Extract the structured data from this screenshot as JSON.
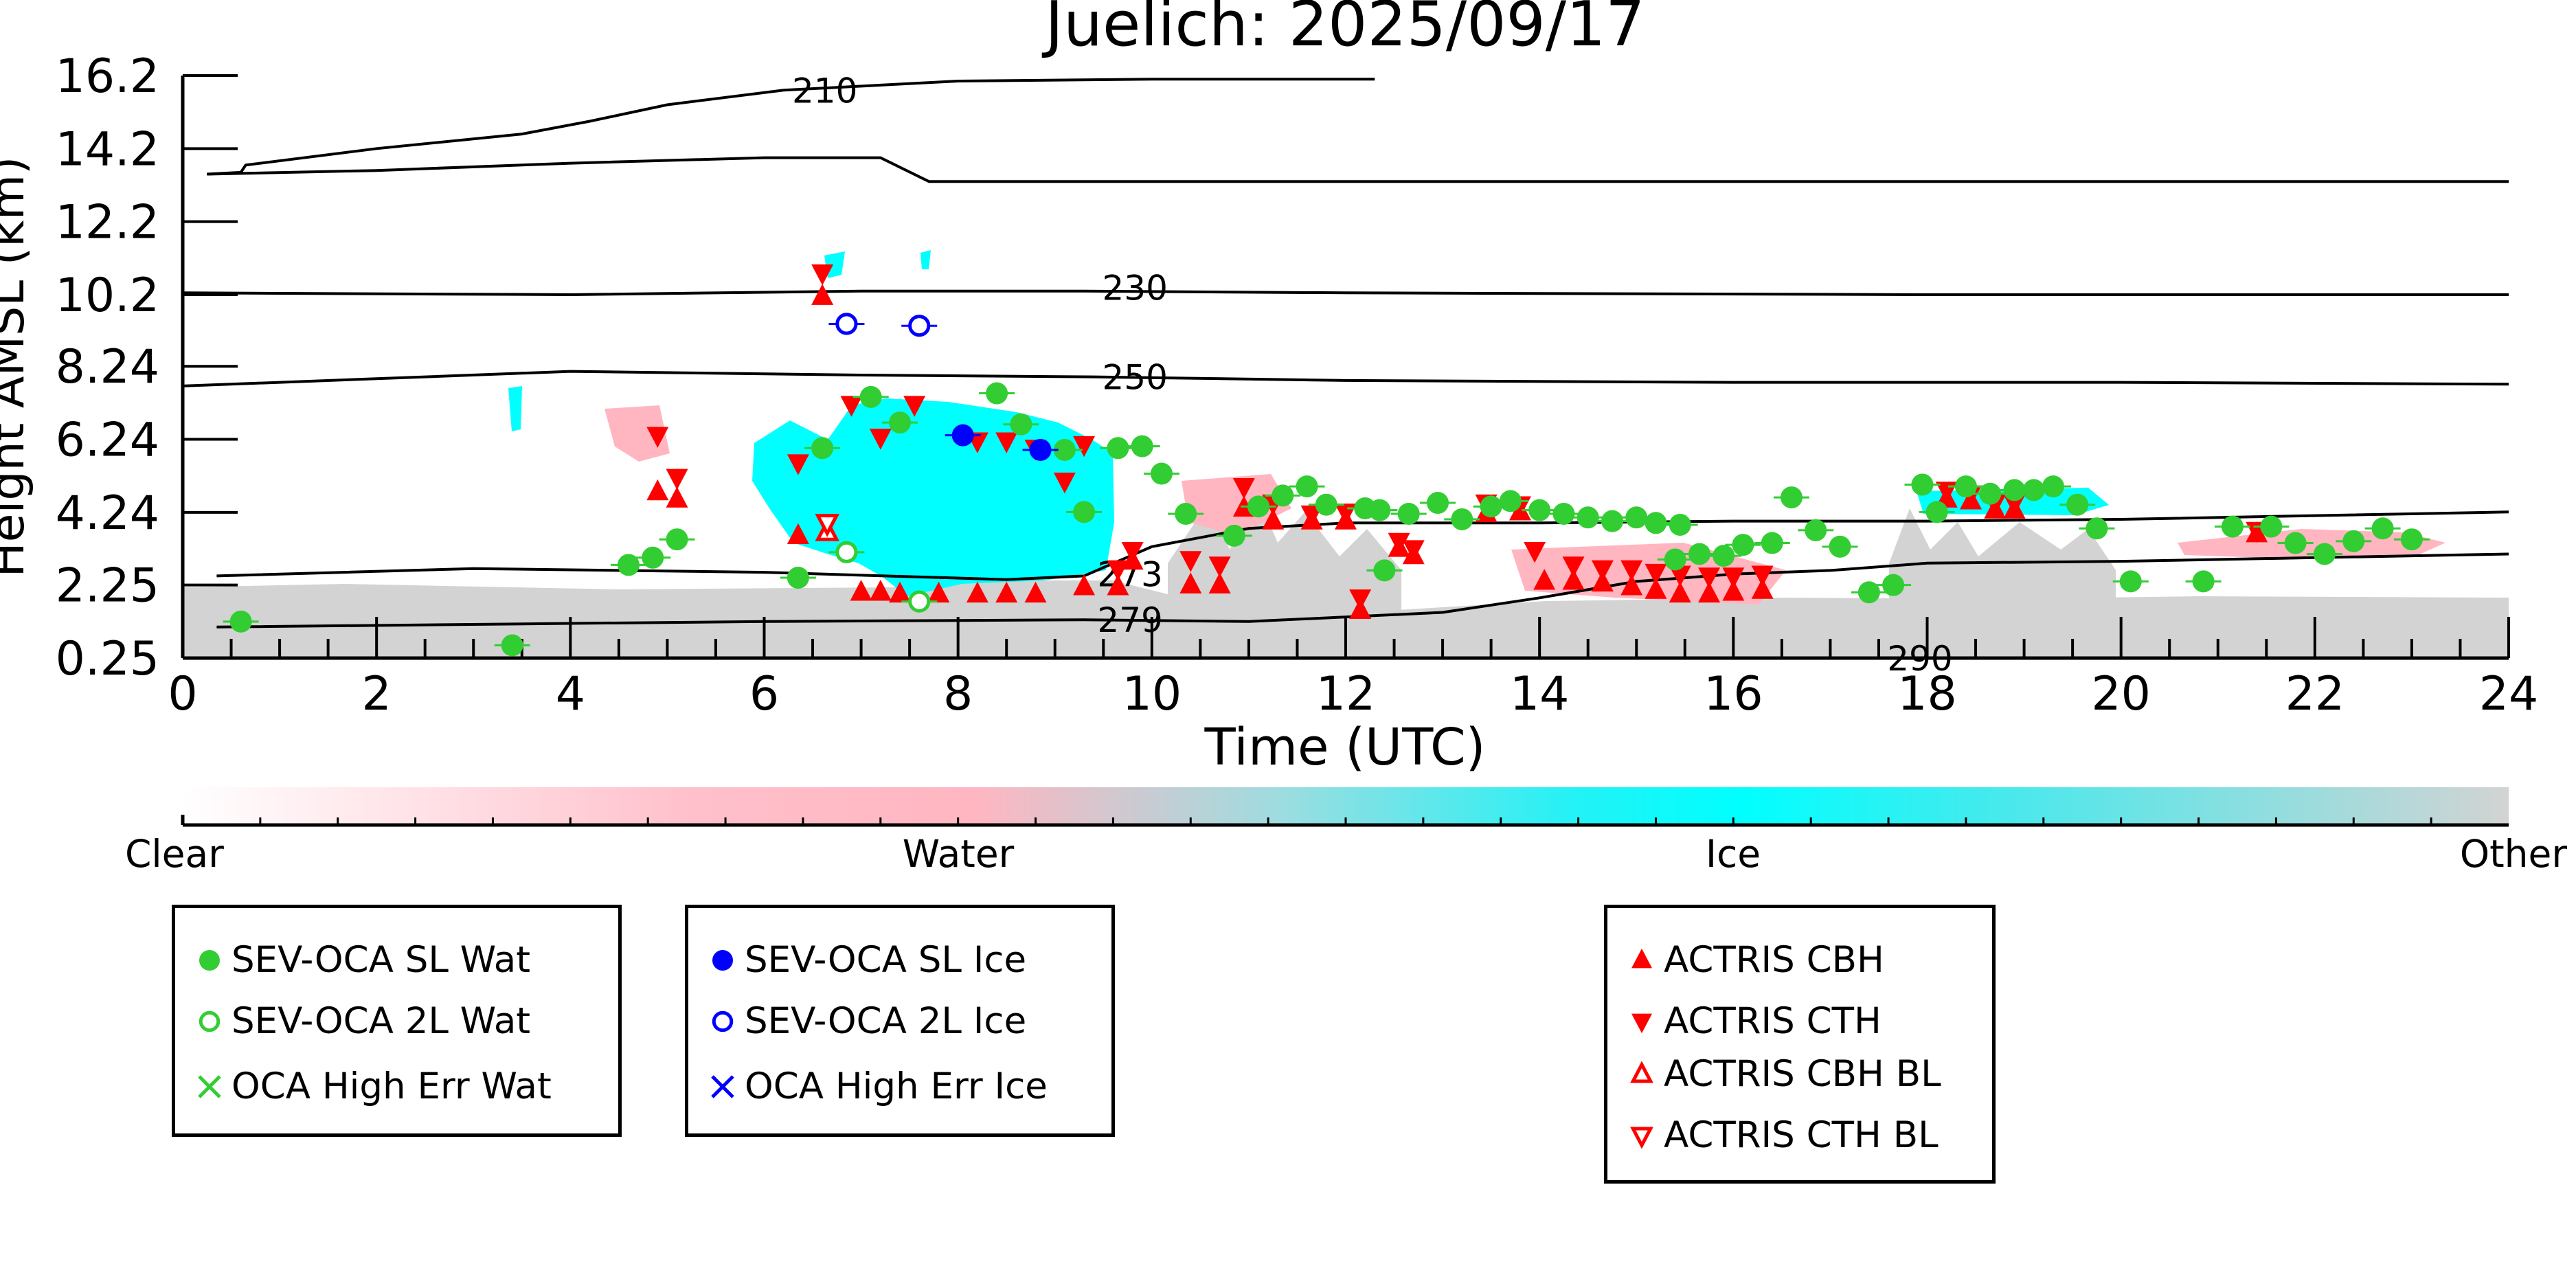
{
  "chart_data": {
    "type": "scatter",
    "title": "Juelich: 2025/09/17",
    "xlabel": "Time (UTC)",
    "ylabel": "Height AMSL (km)",
    "xlim": [
      0,
      24
    ],
    "ylim": [
      0.25,
      16.2
    ],
    "x_ticks": [
      "0",
      "2",
      "4",
      "6",
      "8",
      "10",
      "12",
      "14",
      "16",
      "18",
      "20",
      "22",
      "24"
    ],
    "y_ticks": [
      "0.25",
      "2.25",
      "4.24",
      "6.24",
      "8.24",
      "10.2",
      "12.2",
      "14.2",
      "16.2"
    ],
    "y_tick_values": [
      0.25,
      2.25,
      4.24,
      6.24,
      8.24,
      10.2,
      12.2,
      14.2,
      16.2
    ],
    "grid": false,
    "colorbar": {
      "labels": [
        "Clear",
        "Water",
        "Ice",
        "Other"
      ],
      "colors": [
        "#ffffff",
        "#ffb6c1",
        "#00ffff",
        "#d3d3d3"
      ]
    },
    "contours": [
      {
        "label": "210",
        "label_x": 6.2,
        "label_y": 15.8,
        "points": [
          [
            0.25,
            13.5
          ],
          [
            0.6,
            13.55
          ],
          [
            0.65,
            13.75
          ],
          [
            2,
            14.2
          ],
          [
            3.5,
            14.6
          ],
          [
            4.2,
            14.95
          ],
          [
            5,
            15.4
          ],
          [
            6.2,
            15.8
          ],
          [
            8,
            16.05
          ],
          [
            10,
            16.1
          ],
          [
            12.3,
            16.1
          ]
        ]
      },
      {
        "label": "",
        "label_x": null,
        "label_y": null,
        "points": [
          [
            0.25,
            13.5
          ],
          [
            2,
            13.6
          ],
          [
            4,
            13.8
          ],
          [
            6,
            13.95
          ],
          [
            7.2,
            13.95
          ],
          [
            7.7,
            13.3
          ],
          [
            12,
            13.3
          ],
          [
            18,
            13.3
          ],
          [
            24,
            13.3
          ]
        ]
      },
      {
        "label": "230",
        "label_x": 9.4,
        "label_y": 10.4,
        "points": [
          [
            0,
            10.25
          ],
          [
            4,
            10.2
          ],
          [
            7,
            10.3
          ],
          [
            9.3,
            10.3
          ],
          [
            12,
            10.25
          ],
          [
            18,
            10.2
          ],
          [
            24,
            10.2
          ]
        ]
      },
      {
        "label": "250",
        "label_x": 9.4,
        "label_y": 7.95,
        "points": [
          [
            0,
            7.7
          ],
          [
            2,
            7.9
          ],
          [
            4,
            8.1
          ],
          [
            7,
            8.0
          ],
          [
            9.4,
            7.95
          ],
          [
            12,
            7.85
          ],
          [
            16,
            7.8
          ],
          [
            20,
            7.8
          ],
          [
            24,
            7.75
          ]
        ]
      },
      {
        "label": "273",
        "label_x": 9.35,
        "label_y": 2.55,
        "points": [
          [
            0.35,
            2.5
          ],
          [
            3,
            2.7
          ],
          [
            6,
            2.6
          ],
          [
            8.5,
            2.4
          ],
          [
            9.3,
            2.5
          ],
          [
            10,
            3.3
          ],
          [
            11,
            3.8
          ],
          [
            12,
            3.95
          ],
          [
            14,
            3.95
          ],
          [
            16,
            4.0
          ],
          [
            18,
            4.0
          ],
          [
            20,
            4.05
          ],
          [
            24,
            4.25
          ]
        ]
      },
      {
        "label": "279",
        "label_x": 9.35,
        "label_y": 1.3,
        "points": [
          [
            0.35,
            1.1
          ],
          [
            4,
            1.2
          ],
          [
            6,
            1.25
          ],
          [
            9.3,
            1.3
          ],
          [
            11,
            1.25
          ],
          [
            13,
            1.5
          ],
          [
            14,
            1.9
          ],
          [
            15,
            2.35
          ],
          [
            16,
            2.55
          ],
          [
            17,
            2.65
          ],
          [
            18,
            2.85
          ],
          [
            20,
            2.9
          ],
          [
            22,
            3.0
          ],
          [
            24,
            3.1
          ]
        ]
      },
      {
        "label": "290",
        "label_x": 17.5,
        "label_y": 0.25,
        "points": []
      }
    ],
    "series": [
      {
        "name": "SEV-OCA SL Wat",
        "marker": "filled-circle",
        "color": "#32cd32",
        "points": [
          [
            0.6,
            1.25
          ],
          [
            3.4,
            0.6
          ],
          [
            4.6,
            2.8
          ],
          [
            4.85,
            3.0
          ],
          [
            5.1,
            3.5
          ],
          [
            6.35,
            2.45
          ],
          [
            6.6,
            6.0
          ],
          [
            7.1,
            7.4
          ],
          [
            7.4,
            6.7
          ],
          [
            8.4,
            7.5
          ],
          [
            8.65,
            6.65
          ],
          [
            9.1,
            5.95
          ],
          [
            9.3,
            4.25
          ],
          [
            9.65,
            6.0
          ],
          [
            9.9,
            6.05
          ],
          [
            10.1,
            5.3
          ],
          [
            10.35,
            4.2
          ],
          [
            10.85,
            3.6
          ],
          [
            11.1,
            4.4
          ],
          [
            11.35,
            4.7
          ],
          [
            11.6,
            4.95
          ],
          [
            11.8,
            4.45
          ],
          [
            12.2,
            4.35
          ],
          [
            12.35,
            4.3
          ],
          [
            12.4,
            2.65
          ],
          [
            12.65,
            4.2
          ],
          [
            12.95,
            4.5
          ],
          [
            13.2,
            4.05
          ],
          [
            13.5,
            4.4
          ],
          [
            13.7,
            4.55
          ],
          [
            14.0,
            4.3
          ],
          [
            14.25,
            4.2
          ],
          [
            14.5,
            4.1
          ],
          [
            14.75,
            4.0
          ],
          [
            15.0,
            4.1
          ],
          [
            15.2,
            3.95
          ],
          [
            15.45,
            3.9
          ],
          [
            15.4,
            2.95
          ],
          [
            15.65,
            3.1
          ],
          [
            15.9,
            3.05
          ],
          [
            16.1,
            3.35
          ],
          [
            16.4,
            3.4
          ],
          [
            16.6,
            4.65
          ],
          [
            16.85,
            3.75
          ],
          [
            17.1,
            3.3
          ],
          [
            17.4,
            2.05
          ],
          [
            17.65,
            2.25
          ],
          [
            17.95,
            5.0
          ],
          [
            18.1,
            4.25
          ],
          [
            18.4,
            4.95
          ],
          [
            18.65,
            4.75
          ],
          [
            18.9,
            4.85
          ],
          [
            19.1,
            4.85
          ],
          [
            19.3,
            4.95
          ],
          [
            19.55,
            4.45
          ],
          [
            19.75,
            3.8
          ],
          [
            20.1,
            2.35
          ],
          [
            20.85,
            2.35
          ],
          [
            21.15,
            3.85
          ],
          [
            21.55,
            3.85
          ],
          [
            21.8,
            3.4
          ],
          [
            22.1,
            3.1
          ],
          [
            22.4,
            3.45
          ],
          [
            22.7,
            3.8
          ],
          [
            23.0,
            3.5
          ]
        ]
      },
      {
        "name": "SEV-OCA 2L Wat",
        "marker": "open-circle",
        "color": "#32cd32",
        "points": [
          [
            6.85,
            3.15
          ],
          [
            7.6,
            1.8
          ]
        ]
      },
      {
        "name": "OCA High Err Wat",
        "marker": "x",
        "color": "#32cd32",
        "points": []
      },
      {
        "name": "SEV-OCA SL Ice",
        "marker": "filled-circle",
        "color": "#0000ff",
        "points": [
          [
            8.05,
            6.35
          ],
          [
            8.85,
            5.95
          ]
        ]
      },
      {
        "name": "SEV-OCA 2L Ice",
        "marker": "open-circle",
        "color": "#0000ff",
        "points": [
          [
            6.85,
            9.4
          ],
          [
            7.6,
            9.35
          ]
        ]
      },
      {
        "name": "OCA High Err Ice",
        "marker": "x",
        "color": "#0000ff",
        "points": []
      },
      {
        "name": "ACTRIS CBH",
        "marker": "filled-triangle-up",
        "color": "#ff0000",
        "points": [
          [
            4.9,
            4.8
          ],
          [
            5.1,
            4.6
          ],
          [
            6.35,
            3.6
          ],
          [
            6.6,
            10.15
          ],
          [
            7.0,
            2.05
          ],
          [
            7.2,
            2.05
          ],
          [
            7.4,
            2.0
          ],
          [
            7.8,
            2.0
          ],
          [
            8.2,
            2.0
          ],
          [
            8.5,
            2.0
          ],
          [
            8.8,
            2.0
          ],
          [
            9.3,
            2.2
          ],
          [
            9.65,
            2.2
          ],
          [
            9.8,
            2.9
          ],
          [
            10.4,
            2.25
          ],
          [
            10.7,
            2.25
          ],
          [
            10.95,
            4.35
          ],
          [
            11.25,
            4.0
          ],
          [
            11.65,
            4.0
          ],
          [
            12.0,
            4.0
          ],
          [
            12.15,
            1.55
          ],
          [
            12.55,
            3.25
          ],
          [
            12.7,
            3.05
          ],
          [
            13.45,
            4.2
          ],
          [
            13.8,
            4.25
          ],
          [
            14.05,
            2.35
          ],
          [
            14.35,
            2.35
          ],
          [
            14.65,
            2.3
          ],
          [
            14.95,
            2.2
          ],
          [
            15.2,
            2.1
          ],
          [
            15.45,
            2.0
          ],
          [
            15.75,
            2.0
          ],
          [
            16.0,
            2.05
          ],
          [
            16.3,
            2.1
          ],
          [
            18.2,
            4.6
          ],
          [
            18.45,
            4.55
          ],
          [
            18.7,
            4.3
          ],
          [
            18.9,
            4.3
          ],
          [
            21.4,
            3.65
          ]
        ]
      },
      {
        "name": "ACTRIS CTH",
        "marker": "filled-triangle-down",
        "color": "#ff0000",
        "points": [
          [
            4.9,
            6.35
          ],
          [
            5.1,
            5.2
          ],
          [
            6.35,
            5.6
          ],
          [
            6.6,
            10.8
          ],
          [
            6.9,
            7.2
          ],
          [
            7.2,
            6.3
          ],
          [
            7.55,
            7.2
          ],
          [
            8.2,
            6.2
          ],
          [
            8.5,
            6.2
          ],
          [
            8.8,
            6.0
          ],
          [
            9.1,
            5.1
          ],
          [
            9.3,
            6.1
          ],
          [
            9.65,
            2.7
          ],
          [
            9.8,
            3.2
          ],
          [
            10.4,
            2.95
          ],
          [
            10.7,
            2.8
          ],
          [
            10.95,
            4.95
          ],
          [
            11.25,
            4.5
          ],
          [
            11.65,
            4.2
          ],
          [
            12.0,
            4.25
          ],
          [
            12.15,
            1.9
          ],
          [
            12.55,
            3.45
          ],
          [
            12.7,
            3.25
          ],
          [
            13.45,
            4.5
          ],
          [
            13.8,
            4.45
          ],
          [
            13.95,
            3.2
          ],
          [
            14.35,
            2.8
          ],
          [
            14.65,
            2.7
          ],
          [
            14.95,
            2.7
          ],
          [
            15.2,
            2.6
          ],
          [
            15.45,
            2.55
          ],
          [
            15.75,
            2.5
          ],
          [
            16.0,
            2.5
          ],
          [
            16.3,
            2.55
          ],
          [
            18.2,
            4.85
          ],
          [
            18.45,
            4.75
          ],
          [
            18.7,
            4.5
          ],
          [
            18.9,
            4.5
          ],
          [
            21.4,
            3.75
          ]
        ]
      },
      {
        "name": "ACTRIS CBH BL",
        "marker": "open-triangle-up",
        "color": "#ff0000",
        "points": [
          [
            6.65,
            3.7
          ]
        ]
      },
      {
        "name": "ACTRIS CTH BL",
        "marker": "open-triangle-down",
        "color": "#ff0000",
        "points": [
          [
            6.65,
            3.95
          ]
        ]
      }
    ],
    "legend": {
      "placement": "bottom",
      "groups": [
        [
          "SEV-OCA SL Wat",
          "SEV-OCA 2L Wat",
          "OCA High Err Wat"
        ],
        [
          "SEV-OCA SL Ice",
          "SEV-OCA 2L Ice",
          "OCA High Err Ice"
        ],
        [
          "ACTRIS CBH",
          "ACTRIS CTH",
          "ACTRIS CBH BL",
          "ACTRIS CTH BL"
        ]
      ]
    }
  }
}
